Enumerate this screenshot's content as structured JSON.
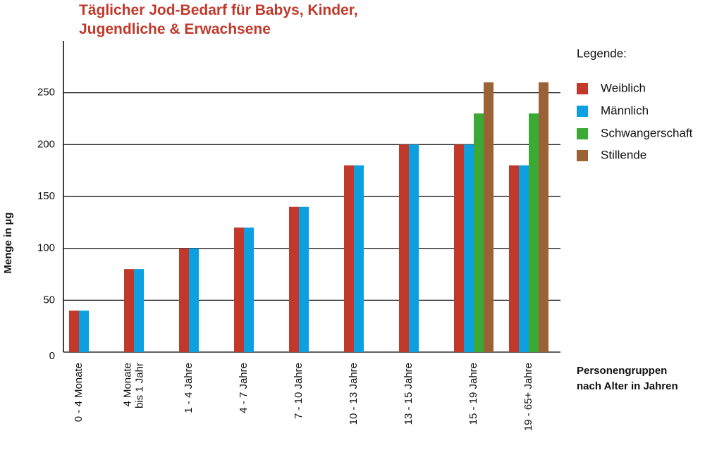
{
  "chart_data": {
    "type": "bar",
    "title": "Täglicher Jod-Bedarf für Babys, Kinder,\nJugendliche & Erwachsene",
    "y_label": "Menge in µg",
    "x_label": "Personengruppen\nnach Alter in Jahren",
    "legend_title": "Legende:",
    "categories": [
      "0 - 4 Monate",
      "4 Monate\nbis 1 Jahr",
      "1 - 4 Jahre",
      "4 - 7 Jahre",
      "7 - 10 Jahre",
      "10 - 13 Jahre",
      "13 - 15 Jahre",
      "15 - 19 Jahre",
      "19 - 65+ Jahre"
    ],
    "series": [
      {
        "name": "Weiblich",
        "color": "#c0392b",
        "values": [
          40,
          80,
          100,
          120,
          140,
          180,
          200,
          200,
          180
        ]
      },
      {
        "name": "Männlich",
        "color": "#0da0e0",
        "values": [
          40,
          80,
          100,
          120,
          140,
          180,
          200,
          200,
          180
        ]
      },
      {
        "name": "Schwangerschaft",
        "color": "#3aaa35",
        "values": [
          null,
          null,
          null,
          null,
          null,
          null,
          null,
          230,
          230
        ]
      },
      {
        "name": "Stillende",
        "color": "#9a6235",
        "values": [
          null,
          null,
          null,
          null,
          null,
          null,
          null,
          260,
          260
        ]
      }
    ],
    "ylim": [
      0,
      300
    ],
    "yticks": [
      0,
      50,
      100,
      150,
      200,
      250
    ],
    "grid": true
  }
}
